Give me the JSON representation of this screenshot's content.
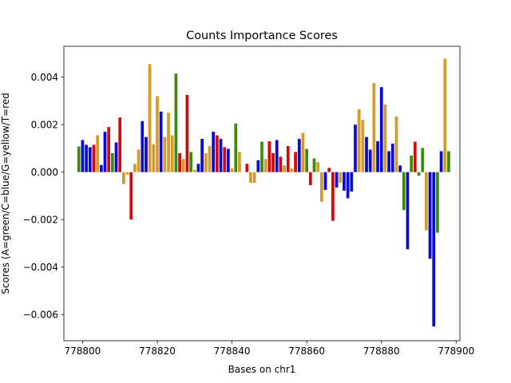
{
  "chart_data": {
    "type": "bar",
    "title": "Counts Importance Scores",
    "xlabel": "Bases on chr1",
    "ylabel": "Scores (A=green/C=blue/G=yellow/T=red",
    "xlim": [
      778795,
      778901
    ],
    "ylim": [
      -0.0071,
      0.0053
    ],
    "xticks": [
      778800,
      778820,
      778840,
      778860,
      778880,
      778900
    ],
    "xtick_labels": [
      "778800",
      "778820",
      "778840",
      "778860",
      "778880",
      "778900"
    ],
    "yticks": [
      -0.006,
      -0.004,
      -0.002,
      0.0,
      0.002,
      0.004
    ],
    "ytick_labels": [
      "−0.006",
      "−0.004",
      "−0.002",
      "0.000",
      "0.002",
      "0.004"
    ],
    "grid": false,
    "colors": {
      "A": "#3c8a0e",
      "C": "#0a0ad6",
      "G": "#d49b2a",
      "T": "#d40a0a"
    },
    "series_key": [
      "A",
      "C",
      "G",
      "T"
    ],
    "x": [
      778799,
      778800,
      778801,
      778802,
      778803,
      778804,
      778805,
      778806,
      778807,
      778808,
      778809,
      778810,
      778811,
      778812,
      778813,
      778814,
      778815,
      778816,
      778817,
      778818,
      778819,
      778820,
      778821,
      778822,
      778823,
      778824,
      778825,
      778826,
      778827,
      778828,
      778829,
      778830,
      778831,
      778832,
      778833,
      778834,
      778835,
      778836,
      778837,
      778838,
      778839,
      778840,
      778841,
      778842,
      778843,
      778844,
      778845,
      778846,
      778847,
      778848,
      778849,
      778850,
      778851,
      778852,
      778853,
      778854,
      778855,
      778856,
      778857,
      778858,
      778859,
      778860,
      778861,
      778862,
      778863,
      778864,
      778865,
      778866,
      778867,
      778868,
      778869,
      778870,
      778871,
      778872,
      778873,
      778874,
      778875,
      778876,
      778877,
      778878,
      778879,
      778880,
      778881,
      778882,
      778883,
      778884,
      778885,
      778886,
      778887,
      778888,
      778889,
      778890,
      778891,
      778892,
      778893,
      778894,
      778895,
      778896,
      778897,
      778898
    ],
    "values": [
      0.00108,
      0.00135,
      0.00115,
      0.00105,
      0.00115,
      0.00155,
      0.0003,
      0.0017,
      0.0019,
      0.0008,
      0.00125,
      0.0023,
      -0.0005,
      -0.0001,
      -0.002,
      0.00035,
      0.00095,
      0.00215,
      0.00148,
      0.00455,
      0.00118,
      0.0032,
      0.00255,
      0.00148,
      0.0025,
      0.00155,
      0.00415,
      0.0008,
      0.00055,
      0.00325,
      0.00085,
      0.0001,
      0.00035,
      0.0014,
      0.0008,
      0.0011,
      0.0017,
      0.00155,
      0.0014,
      0.00105,
      0.00098,
      0.00015,
      0.00205,
      0.00085,
      0.0,
      0.00035,
      -0.00045,
      -0.00045,
      0.0005,
      0.00128,
      0.00055,
      0.0013,
      0.0008,
      0.00135,
      0.00065,
      0.00028,
      0.0011,
      0.00015,
      0.00085,
      0.0014,
      0.00165,
      0.00098,
      -0.00055,
      0.00058,
      0.00042,
      -0.00125,
      -0.00075,
      0.00018,
      -0.00205,
      -0.00065,
      -0.00045,
      -0.00078,
      -0.0011,
      -0.00082,
      0.002,
      0.00265,
      0.0022,
      0.00148,
      0.00095,
      0.00375,
      0.0013,
      0.00358,
      0.00285,
      0.00088,
      0.0012,
      0.00235,
      0.00028,
      -0.0016,
      -0.00325,
      0.0007,
      0.00128,
      -0.00015,
      0.00102,
      -0.00245,
      -0.00365,
      -0.0065,
      -0.00255,
      0.00088,
      0.00478,
      0.00088
    ],
    "bases": [
      "A",
      "C",
      "C",
      "C",
      "T",
      "G",
      "C",
      "C",
      "T",
      "A",
      "C",
      "T",
      "G",
      "G",
      "T",
      "G",
      "G",
      "C",
      "C",
      "G",
      "G",
      "G",
      "C",
      "G",
      "G",
      "G",
      "A",
      "T",
      "G",
      "T",
      "A",
      "G",
      "C",
      "C",
      "G",
      "G",
      "C",
      "T",
      "C",
      "T",
      "C",
      "G",
      "A",
      "G",
      "G",
      "T",
      "G",
      "G",
      "C",
      "A",
      "G",
      "T",
      "T",
      "C",
      "T",
      "G",
      "T",
      "G",
      "T",
      "C",
      "G",
      "A",
      "T",
      "A",
      "G",
      "G",
      "C",
      "T",
      "T",
      "C",
      "G",
      "C",
      "C",
      "C",
      "C",
      "G",
      "G",
      "C",
      "C",
      "G",
      "C",
      "C",
      "G",
      "C",
      "C",
      "G",
      "C",
      "A",
      "C",
      "A",
      "T",
      "A",
      "A",
      "G",
      "C",
      "C",
      "A",
      "C",
      "G",
      "A"
    ]
  }
}
